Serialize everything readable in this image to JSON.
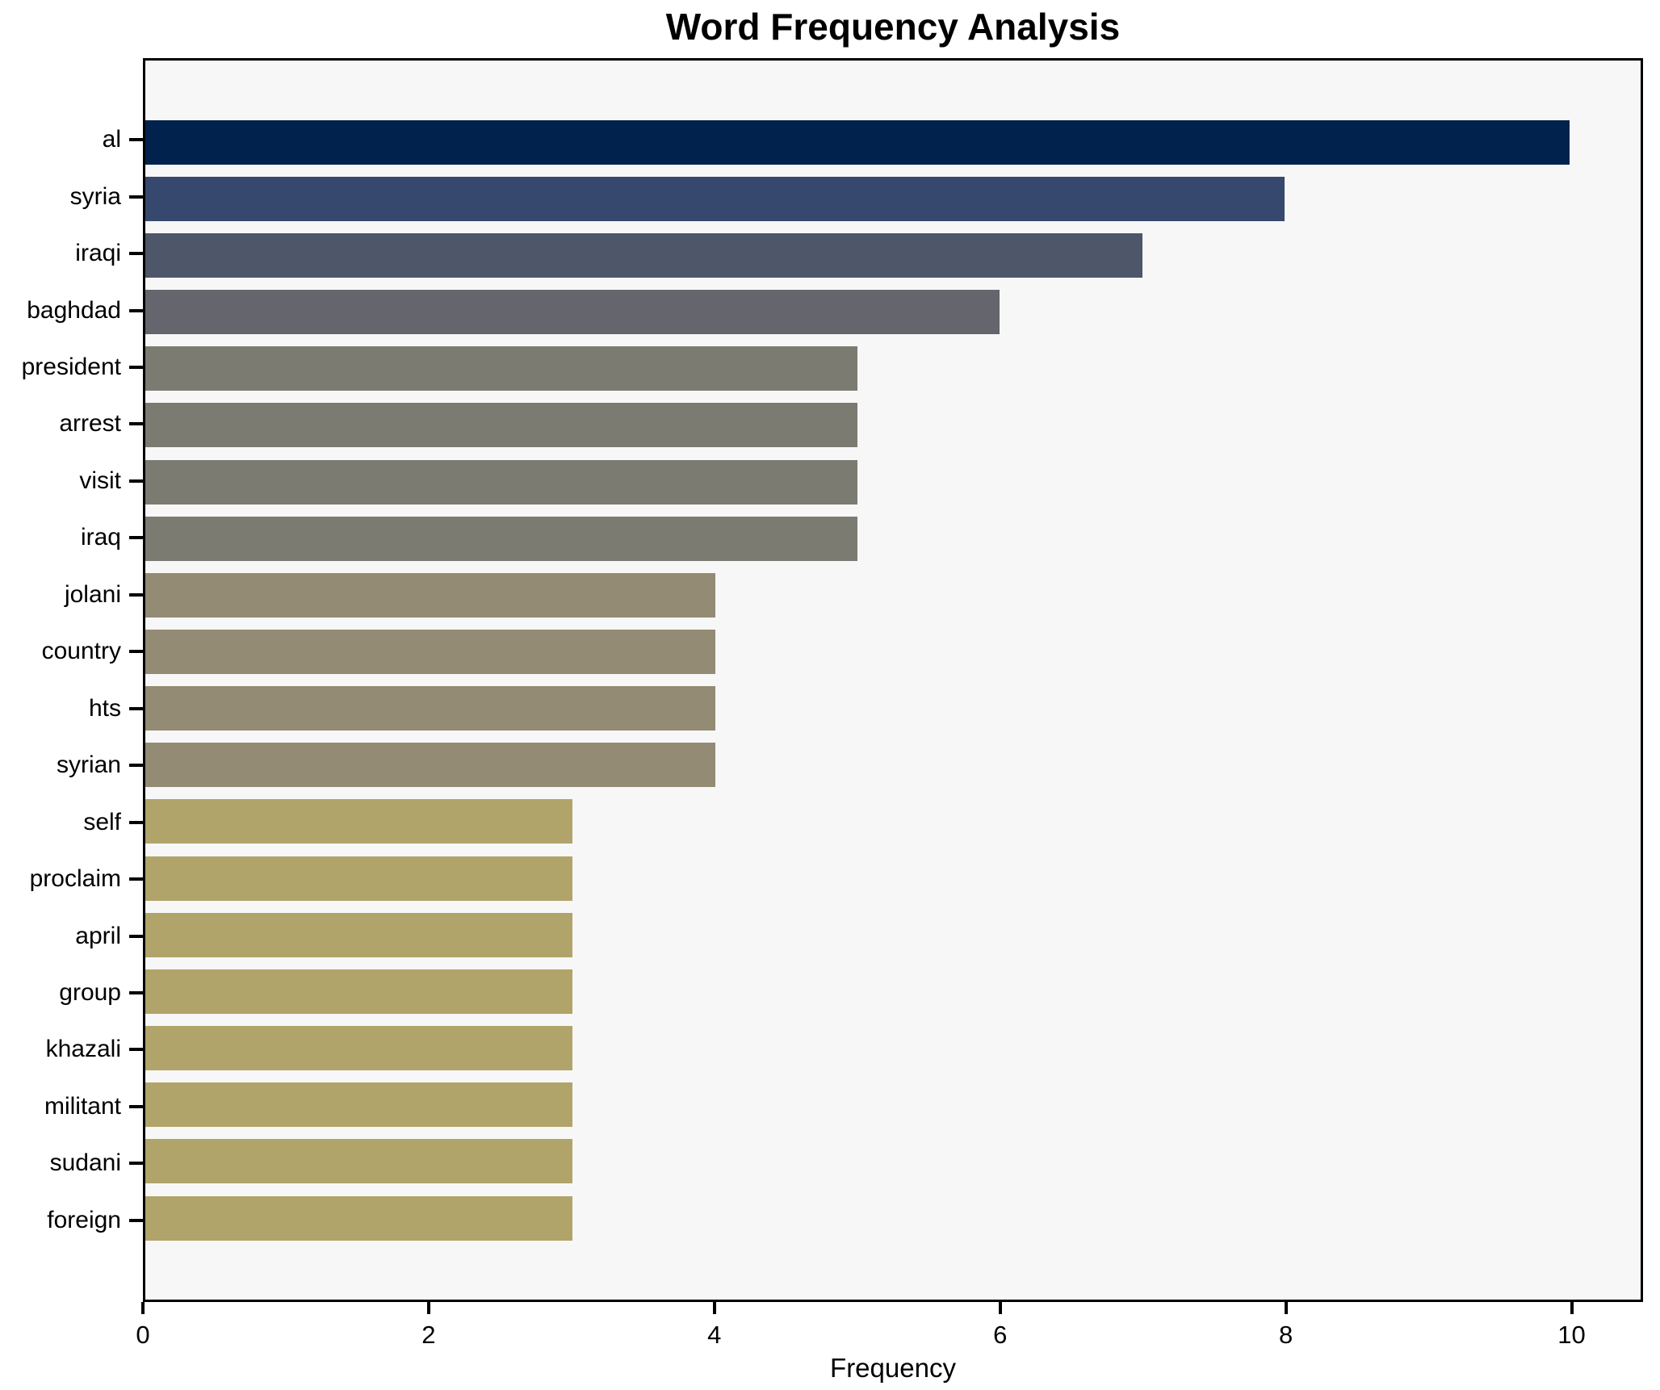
{
  "title": "Word Frequency Analysis",
  "chart_data": {
    "type": "bar",
    "orientation": "horizontal",
    "title": "Word Frequency Analysis",
    "xlabel": "Frequency",
    "ylabel": "",
    "xlim": [
      0,
      10.5
    ],
    "x_ticks": [
      0,
      2,
      4,
      6,
      8,
      10
    ],
    "grid": false,
    "legend": "none",
    "plot_background": "#f7f7f7",
    "spine_color": "#000000",
    "categories": [
      "al",
      "syria",
      "iraqi",
      "baghdad",
      "president",
      "arrest",
      "visit",
      "iraq",
      "jolani",
      "country",
      "hts",
      "syrian",
      "self",
      "proclaim",
      "april",
      "group",
      "khazali",
      "militant",
      "sudani",
      "foreign"
    ],
    "values": [
      10,
      8,
      7,
      6,
      5,
      5,
      5,
      5,
      4,
      4,
      4,
      4,
      3,
      3,
      3,
      3,
      3,
      3,
      3,
      3
    ],
    "bar_colors": [
      "#00224d",
      "#36486d",
      "#4e5669",
      "#65666d",
      "#7c7b72",
      "#7c7b72",
      "#7c7b72",
      "#7c7b72",
      "#938b73",
      "#938b73",
      "#938b73",
      "#938b73",
      "#b1a46a",
      "#b1a46a",
      "#b1a46a",
      "#b1a46a",
      "#b1a46a",
      "#b1a46a",
      "#b1a46a",
      "#b1a46a"
    ]
  }
}
